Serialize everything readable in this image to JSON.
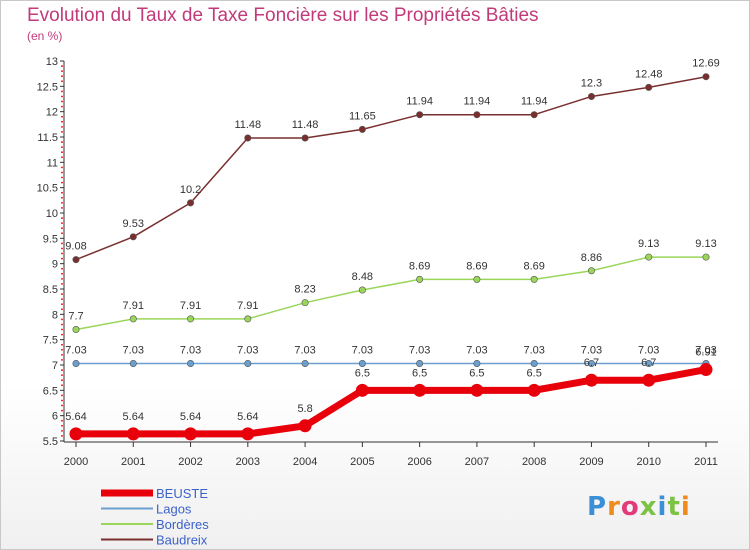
{
  "title": "Evolution du Taux de Taxe Foncière sur les Propriétés Bâties",
  "subtitle": "(en %)",
  "brand": "Proxiti",
  "chart_data": {
    "type": "line",
    "x": [
      "2000",
      "2001",
      "2002",
      "2003",
      "2004",
      "2005",
      "2006",
      "2007",
      "2008",
      "2009",
      "2010",
      "2011"
    ],
    "ylim": [
      5.5,
      13
    ],
    "yticks": [
      5.5,
      6,
      6.5,
      7,
      7.5,
      8,
      8.5,
      9,
      9.5,
      10,
      10.5,
      11,
      11.5,
      12,
      12.5,
      13
    ],
    "ytick_labels": [
      "5.5",
      "6",
      "6.5",
      "7",
      "7.5",
      "8",
      "8.5",
      "9",
      "9.5",
      "10",
      "10.5",
      "11",
      "11.5",
      "12",
      "12.5",
      "13"
    ],
    "grid": false,
    "legend_position": "bottom-left",
    "series": [
      {
        "name": "BEUSTE",
        "color": "#e8000b",
        "values": [
          5.64,
          5.64,
          5.64,
          5.64,
          5.8,
          6.5,
          6.5,
          6.5,
          6.5,
          6.7,
          6.7,
          6.91
        ],
        "labels": [
          "5.64",
          "5.64",
          "5.64",
          "5.64",
          "5.8",
          "6.5",
          "6.5",
          "6.5",
          "6.5",
          "6.7",
          "6.7",
          "6.91"
        ]
      },
      {
        "name": "Lagos",
        "color": "#6a9fcf",
        "values": [
          7.03,
          7.03,
          7.03,
          7.03,
          7.03,
          7.03,
          7.03,
          7.03,
          7.03,
          7.03,
          7.03,
          7.03
        ],
        "labels": [
          "7.03",
          "7.03",
          "7.03",
          "7.03",
          "7.03",
          "7.03",
          "7.03",
          "7.03",
          "7.03",
          "7.03",
          "7.03",
          "7.03"
        ]
      },
      {
        "name": "Bordères",
        "color": "#99d65a",
        "values": [
          7.7,
          7.91,
          7.91,
          7.91,
          8.23,
          8.48,
          8.69,
          8.69,
          8.69,
          8.86,
          9.13,
          9.13
        ],
        "labels": [
          "7.7",
          "7.91",
          "7.91",
          "7.91",
          "8.23",
          "8.48",
          "8.69",
          "8.69",
          "8.69",
          "8.86",
          "9.13",
          "9.13"
        ]
      },
      {
        "name": "Baudreix",
        "color": "#7a2f2f",
        "values": [
          9.08,
          9.53,
          10.2,
          11.48,
          11.48,
          11.65,
          11.94,
          11.94,
          11.94,
          12.3,
          12.48,
          12.69
        ],
        "labels": [
          "9.08",
          "9.53",
          "10.2",
          "11.48",
          "11.48",
          "11.65",
          "11.94",
          "11.94",
          "11.94",
          "12.3",
          "12.48",
          "12.69"
        ]
      }
    ]
  }
}
